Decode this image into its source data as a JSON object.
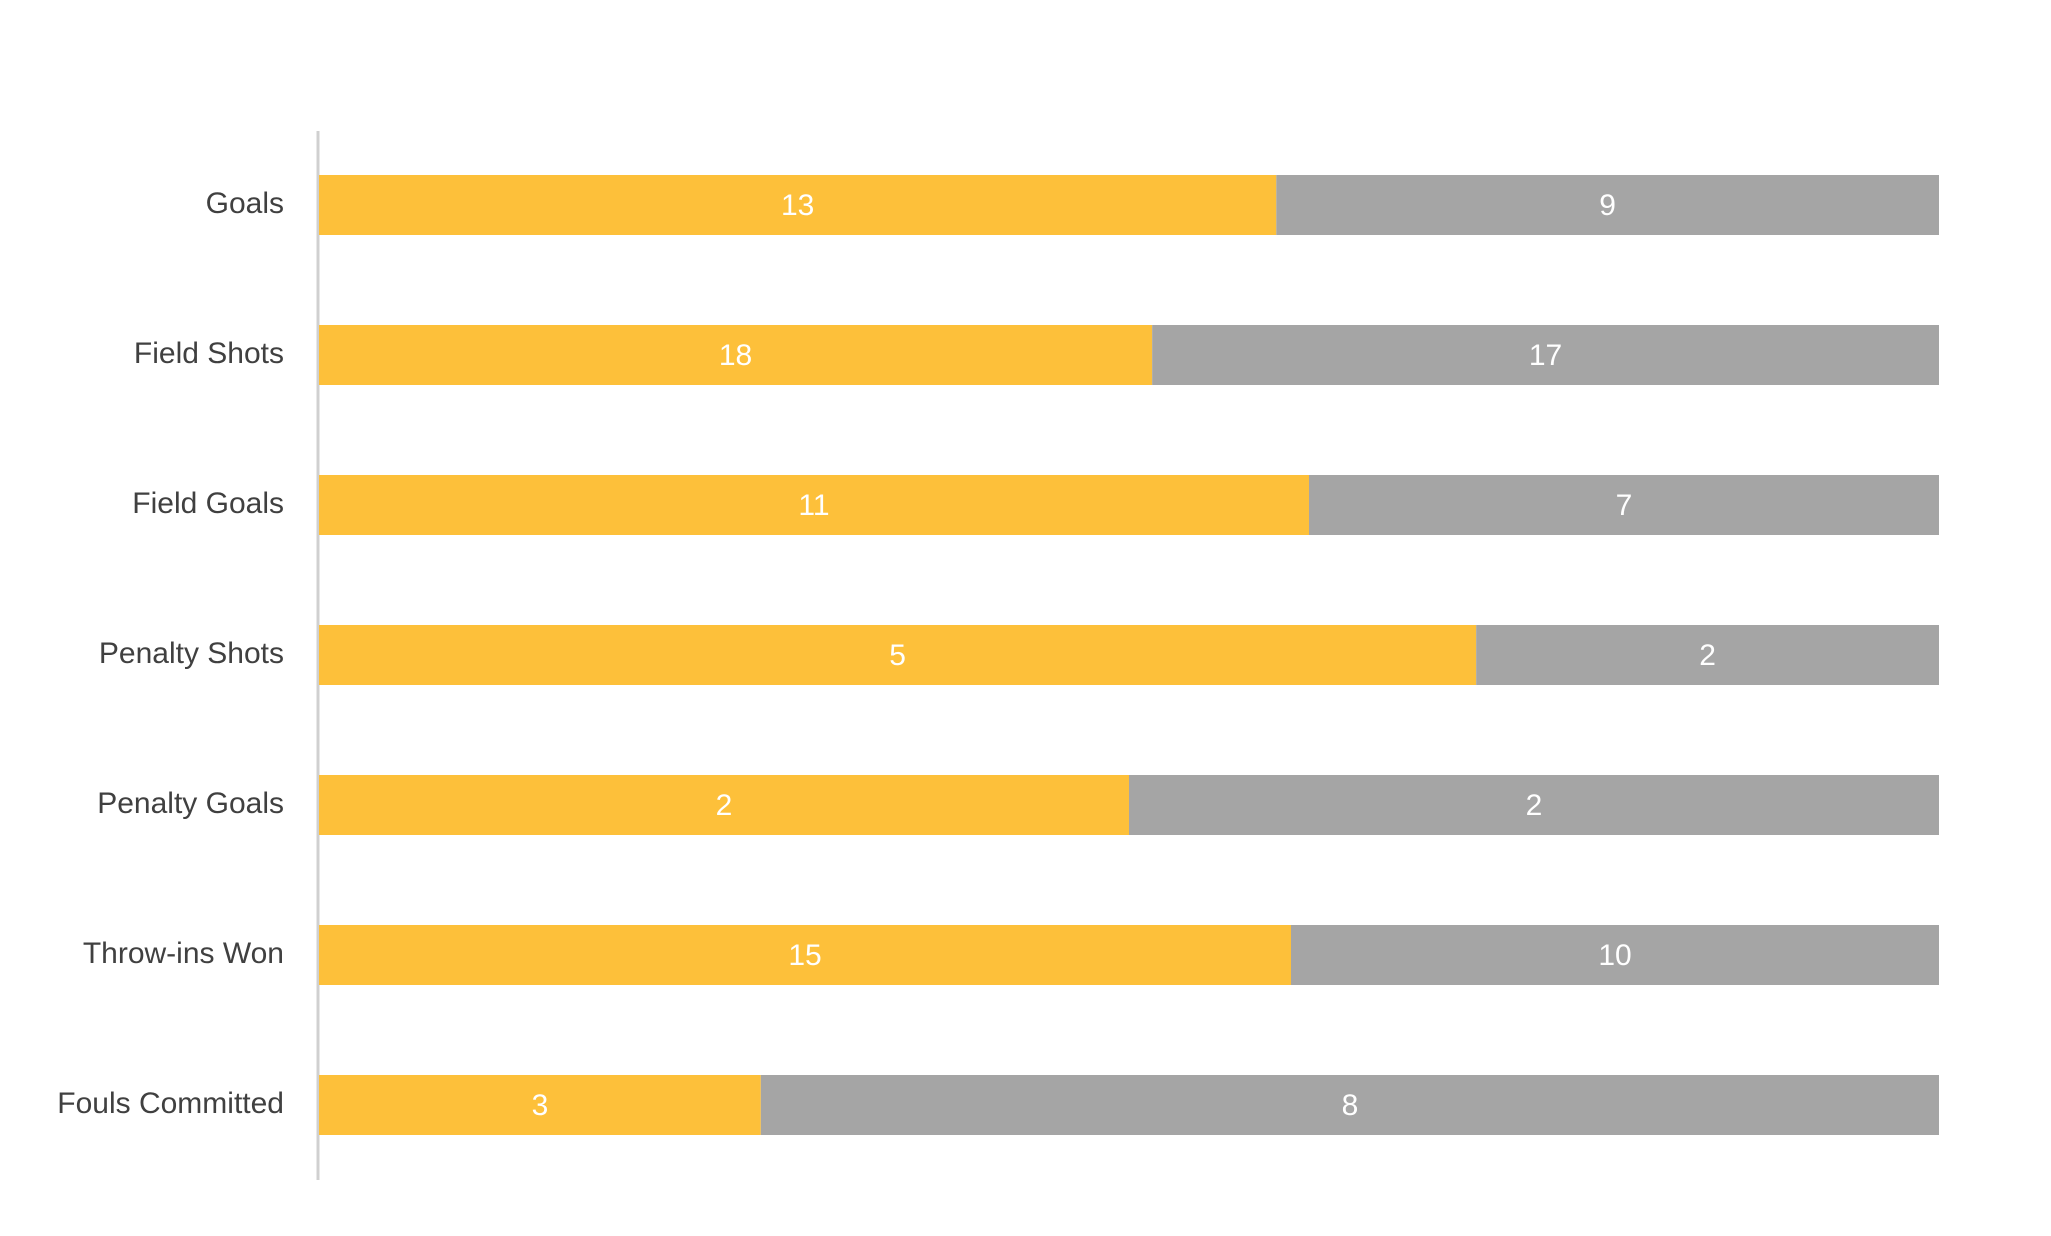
{
  "chart_data": {
    "type": "bar",
    "orientation": "horizontal",
    "stack": "percent",
    "categories": [
      "Goals",
      "Field Shots",
      "Field Goals",
      "Penalty Shots",
      "Penalty Goals",
      "Throw-ins Won",
      "Fouls Committed"
    ],
    "series": [
      {
        "color": "#fdc03a",
        "values": [
          13,
          18,
          11,
          5,
          2,
          15,
          3
        ]
      },
      {
        "color": "#a5a5a5",
        "values": [
          9,
          17,
          7,
          2,
          2,
          10,
          8
        ]
      }
    ],
    "data_labels": true,
    "label_color": "#ffffff"
  }
}
